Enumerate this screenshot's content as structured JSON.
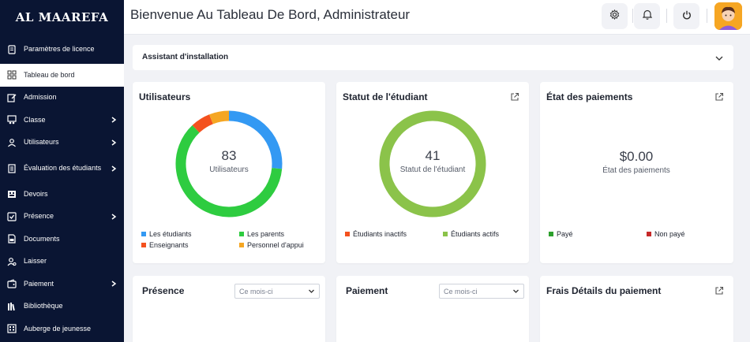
{
  "brand": {
    "logo_text": "AL MAAREFA"
  },
  "header": {
    "title": "Bienvenue Au Tableau De Bord, Administrateur"
  },
  "sidebar": {
    "items": [
      {
        "label": "Paramètres de licence",
        "icon": "license-icon"
      },
      {
        "label": "Tableau de bord",
        "icon": "grid-icon",
        "active": true
      },
      {
        "label": "Admission",
        "icon": "edit-icon"
      },
      {
        "label": "Classe",
        "icon": "class-icon",
        "has_children": true
      },
      {
        "label": "Utilisateurs",
        "icon": "user-icon",
        "has_children": true
      },
      {
        "label": "Évaluation des étudiants",
        "icon": "evaluation-icon",
        "has_children": true
      },
      {
        "label": "Devoirs",
        "icon": "homework-icon"
      },
      {
        "label": "Présence",
        "icon": "check-icon",
        "has_children": true
      },
      {
        "label": "Documents",
        "icon": "documents-icon"
      },
      {
        "label": "Laisser",
        "icon": "leave-icon"
      },
      {
        "label": "Paiement",
        "icon": "payment-icon",
        "has_children": true
      },
      {
        "label": "Bibliothèque",
        "icon": "library-icon"
      },
      {
        "label": "Auberge de jeunesse",
        "icon": "hostel-icon"
      }
    ]
  },
  "assistant": {
    "title": "Assistant d'installation"
  },
  "cards": {
    "users": {
      "title": "Utilisateurs",
      "total": "83",
      "center_label": "Utilisateurs",
      "segments": [
        {
          "label": "Les étudiants",
          "value": 22,
          "color": "#3399f3"
        },
        {
          "label": "Les parents",
          "value": 51,
          "color": "#2ecc40"
        },
        {
          "label": "Enseignants",
          "value": 5,
          "color": "#f4511e"
        },
        {
          "label": "Personnel d'appui",
          "value": 5,
          "color": "#f5a623"
        }
      ],
      "legend_order": [
        0,
        1,
        2,
        3
      ],
      "ring_order": [
        0,
        1,
        2
      ]
    },
    "students": {
      "title": "Statut de l'étudiant",
      "total": "41",
      "center_label": "Statut de l'étudiant",
      "segments": [
        {
          "label": "Étudiants inactifs",
          "value": 0,
          "color": "#f4511e"
        },
        {
          "label": "Étudiants actifs",
          "value": 41,
          "color": "#8bc34a"
        }
      ]
    },
    "payments": {
      "title": "État des paiements",
      "total": "$0.00",
      "center_label": "État des paiements",
      "segments": [
        {
          "label": "Payé",
          "color": "#2ca02c"
        },
        {
          "label": "Non payé",
          "color": "#c62828"
        }
      ]
    },
    "presence": {
      "title": "Présence",
      "select_value": "Ce mois-ci"
    },
    "payment": {
      "title": "Paiement",
      "select_value": "Ce mois-ci"
    },
    "fee_details": {
      "title": "Frais Détails du paiement"
    }
  }
}
